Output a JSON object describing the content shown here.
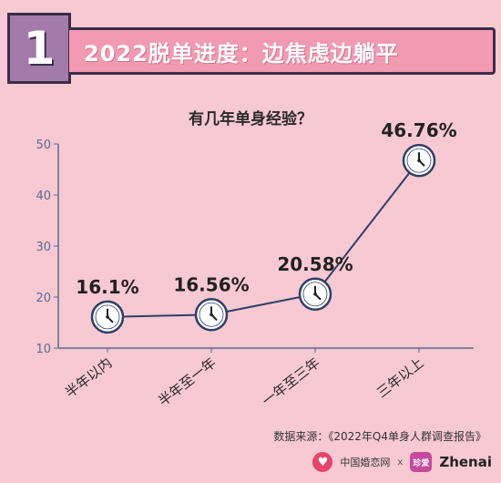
{
  "header": {
    "number": "1",
    "title": "2022脱单进度：边焦虑边躺平"
  },
  "chart_data": {
    "type": "line",
    "title": "有几年单身经验？",
    "categories": [
      "半年以内",
      "半年至一年",
      "一年至三年",
      "三年以上"
    ],
    "values": [
      16.1,
      16.56,
      20.58,
      46.76
    ],
    "value_labels": [
      "16.1%",
      "16.56%",
      "20.58%",
      "46.76%"
    ],
    "yticks": [
      10,
      20,
      30,
      40,
      50
    ],
    "ylim": [
      10,
      50
    ],
    "xlabel": "",
    "ylabel": "",
    "grid": false,
    "marker": "clock-icon",
    "line_color": "#2f3f66"
  },
  "source": "数据来源：《2022年Q4单身人群调查报告》",
  "footer": {
    "brand1": "中国婚恋网",
    "sep": "x",
    "brand2_icon": "珍爱",
    "brand2": "Zhenai"
  },
  "colors": {
    "background": "#f7c9d2",
    "header_bar": "#f29ab2",
    "number_block": "#a37ba9",
    "axis": "#5a6b8c"
  }
}
